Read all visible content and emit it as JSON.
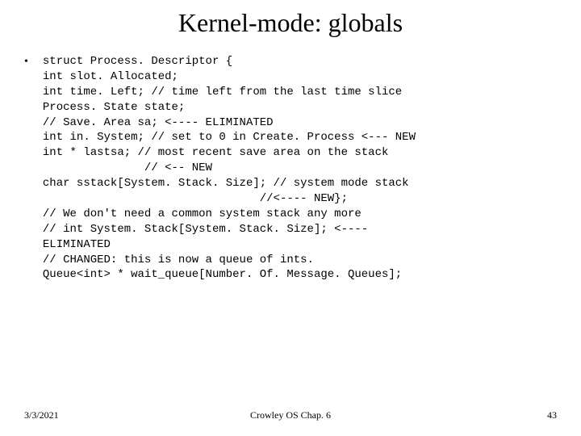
{
  "title": "Kernel-mode: globals",
  "bullet": "•",
  "code": "struct Process. Descriptor {\nint slot. Allocated;\nint time. Left; // time left from the last time slice\nProcess. State state;\n// Save. Area sa; <---- ELIMINATED\nint in. System; // set to 0 in Create. Process <--- NEW\nint * lastsa; // most recent save area on the stack\n               // <-- NEW\nchar sstack[System. Stack. Size]; // system mode stack\n                                //<---- NEW};\n// We don't need a common system stack any more\n// int System. Stack[System. Stack. Size]; <----\nELIMINATED\n// CHANGED: this is now a queue of ints.\nQueue<int> * wait_queue[Number. Of. Message. Queues];",
  "footer": {
    "date": "3/3/2021",
    "center": "Crowley      OS         Chap. 6",
    "page": "43"
  },
  "colors": {
    "background": "#ffffff",
    "text": "#000000"
  },
  "typography": {
    "title_fontsize": 32,
    "code_fontsize": 14,
    "footer_fontsize": 12,
    "title_font": "Times New Roman",
    "code_font": "Courier New"
  }
}
